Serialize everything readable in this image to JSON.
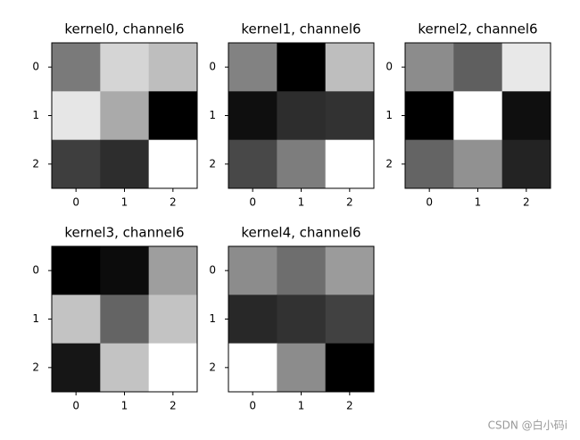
{
  "chart_data": [
    {
      "type": "heatmap",
      "title": "kernel0, channel6",
      "colormap": "gray",
      "values": [
        [
          122,
          213,
          190
        ],
        [
          230,
          170,
          0
        ],
        [
          62,
          45,
          255
        ]
      ],
      "xlim": [
        -0.5,
        2.5
      ],
      "ylim": [
        2.5,
        -0.5
      ],
      "xticks": [
        0,
        1,
        2
      ],
      "yticks": [
        0,
        1,
        2
      ]
    },
    {
      "type": "heatmap",
      "title": "kernel1, channel6",
      "colormap": "gray",
      "values": [
        [
          130,
          0,
          190
        ],
        [
          15,
          45,
          50
        ],
        [
          72,
          125,
          255
        ]
      ],
      "xlim": [
        -0.5,
        2.5
      ],
      "ylim": [
        2.5,
        -0.5
      ],
      "xticks": [
        0,
        1,
        2
      ],
      "yticks": [
        0,
        1,
        2
      ]
    },
    {
      "type": "heatmap",
      "title": "kernel2, channel6",
      "colormap": "gray",
      "values": [
        [
          140,
          95,
          232
        ],
        [
          0,
          255,
          15
        ],
        [
          100,
          145,
          35
        ]
      ],
      "xlim": [
        -0.5,
        2.5
      ],
      "ylim": [
        2.5,
        -0.5
      ],
      "xticks": [
        0,
        1,
        2
      ],
      "yticks": [
        0,
        1,
        2
      ]
    },
    {
      "type": "heatmap",
      "title": "kernel3, channel6",
      "colormap": "gray",
      "values": [
        [
          0,
          12,
          158
        ],
        [
          195,
          100,
          195
        ],
        [
          22,
          195,
          255
        ]
      ],
      "xlim": [
        -0.5,
        2.5
      ],
      "ylim": [
        2.5,
        -0.5
      ],
      "xticks": [
        0,
        1,
        2
      ],
      "yticks": [
        0,
        1,
        2
      ]
    },
    {
      "type": "heatmap",
      "title": "kernel4, channel6",
      "colormap": "gray",
      "values": [
        [
          140,
          110,
          155
        ],
        [
          40,
          50,
          65
        ],
        [
          255,
          140,
          0
        ]
      ],
      "xlim": [
        -0.5,
        2.5
      ],
      "ylim": [
        2.5,
        -0.5
      ],
      "xticks": [
        0,
        1,
        2
      ],
      "yticks": [
        0,
        1,
        2
      ]
    }
  ],
  "watermark": "CSDN @白小码i"
}
